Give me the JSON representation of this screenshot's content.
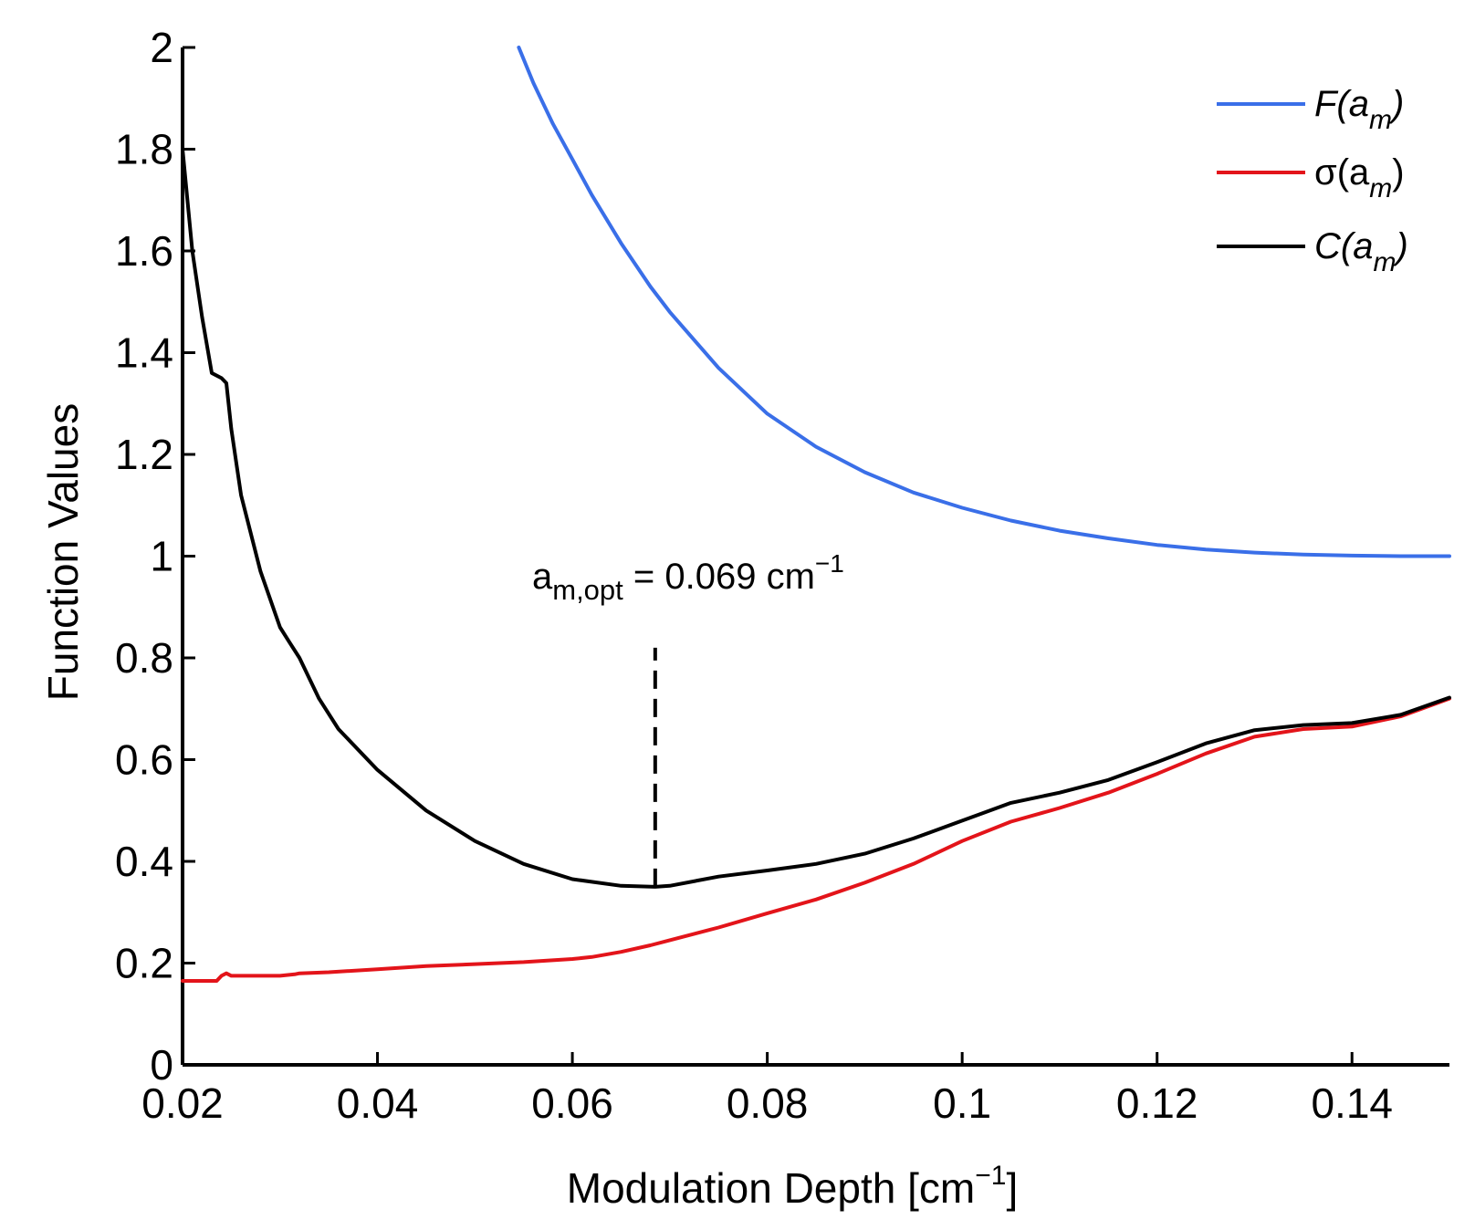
{
  "chart_data": {
    "type": "line",
    "title": "",
    "xlabel": "Modulation Depth [cm",
    "xlabel_unit_sup": "−1",
    "xlabel_close": "]",
    "ylabel": "Function Values",
    "xlim": [
      0.02,
      0.15
    ],
    "ylim": [
      0,
      2
    ],
    "xticks": [
      0.02,
      0.04,
      0.06,
      0.08,
      0.1,
      0.12,
      0.14
    ],
    "xtick_labels": [
      "0.02",
      "0.04",
      "0.06",
      "0.08",
      "0.1",
      "0.12",
      "0.14"
    ],
    "yticks": [
      0,
      0.2,
      0.4,
      0.6,
      0.8,
      1,
      1.2,
      1.4,
      1.6,
      1.8,
      2
    ],
    "ytick_labels": [
      "0",
      "0.2",
      "0.4",
      "0.6",
      "0.8",
      "1",
      "1.2",
      "1.4",
      "1.6",
      "1.8",
      "2"
    ],
    "grid": false,
    "legend_position": "top-right",
    "series": [
      {
        "name": "F(am)",
        "label_main": "F(a",
        "label_sub": "m",
        "label_close": ")",
        "italic": true,
        "color": "#3a6fe8",
        "x": [
          0.0545,
          0.056,
          0.058,
          0.06,
          0.062,
          0.065,
          0.068,
          0.07,
          0.075,
          0.08,
          0.085,
          0.09,
          0.095,
          0.1,
          0.105,
          0.11,
          0.115,
          0.12,
          0.125,
          0.13,
          0.135,
          0.14,
          0.145,
          0.15
        ],
        "y": [
          2.0,
          1.93,
          1.85,
          1.78,
          1.71,
          1.615,
          1.53,
          1.48,
          1.37,
          1.28,
          1.215,
          1.165,
          1.125,
          1.095,
          1.07,
          1.05,
          1.035,
          1.022,
          1.013,
          1.007,
          1.003,
          1.001,
          1.0,
          1.0
        ]
      },
      {
        "name": "σ(am)",
        "label_main": "σ(a",
        "label_sub": "m",
        "label_close": ")",
        "italic": false,
        "color": "#e3141a",
        "x": [
          0.02,
          0.022,
          0.0235,
          0.024,
          0.0245,
          0.025,
          0.027,
          0.03,
          0.0315,
          0.032,
          0.035,
          0.04,
          0.045,
          0.05,
          0.055,
          0.06,
          0.062,
          0.065,
          0.068,
          0.07,
          0.075,
          0.08,
          0.085,
          0.09,
          0.095,
          0.1,
          0.105,
          0.11,
          0.115,
          0.12,
          0.125,
          0.13,
          0.135,
          0.14,
          0.145,
          0.15
        ],
        "y": [
          0.165,
          0.165,
          0.165,
          0.175,
          0.18,
          0.175,
          0.175,
          0.175,
          0.178,
          0.18,
          0.182,
          0.188,
          0.194,
          0.198,
          0.202,
          0.208,
          0.212,
          0.222,
          0.235,
          0.245,
          0.27,
          0.298,
          0.325,
          0.358,
          0.395,
          0.44,
          0.478,
          0.505,
          0.535,
          0.572,
          0.612,
          0.645,
          0.66,
          0.665,
          0.685,
          0.72
        ]
      },
      {
        "name": "C(am)",
        "label_main": "C(a",
        "label_sub": "m",
        "label_close": ")",
        "italic": true,
        "color": "#000000",
        "x": [
          0.02,
          0.021,
          0.022,
          0.023,
          0.024,
          0.0245,
          0.025,
          0.026,
          0.028,
          0.03,
          0.031,
          0.032,
          0.034,
          0.036,
          0.04,
          0.045,
          0.05,
          0.055,
          0.06,
          0.065,
          0.0685,
          0.07,
          0.075,
          0.08,
          0.085,
          0.09,
          0.095,
          0.1,
          0.105,
          0.11,
          0.115,
          0.12,
          0.125,
          0.13,
          0.135,
          0.14,
          0.145,
          0.15
        ],
        "y": [
          1.8,
          1.6,
          1.47,
          1.36,
          1.35,
          1.34,
          1.25,
          1.12,
          0.97,
          0.86,
          0.83,
          0.8,
          0.72,
          0.66,
          0.58,
          0.5,
          0.44,
          0.395,
          0.365,
          0.352,
          0.35,
          0.352,
          0.37,
          0.382,
          0.395,
          0.415,
          0.445,
          0.48,
          0.515,
          0.535,
          0.56,
          0.595,
          0.632,
          0.658,
          0.668,
          0.672,
          0.688,
          0.722
        ]
      }
    ],
    "annotation": {
      "text_main": "a",
      "text_sub": "m,opt",
      "text_rest": " = 0.069 cm",
      "text_sup": "−1",
      "x": 0.0685,
      "y_from": 0.35,
      "y_to": 0.82
    }
  }
}
